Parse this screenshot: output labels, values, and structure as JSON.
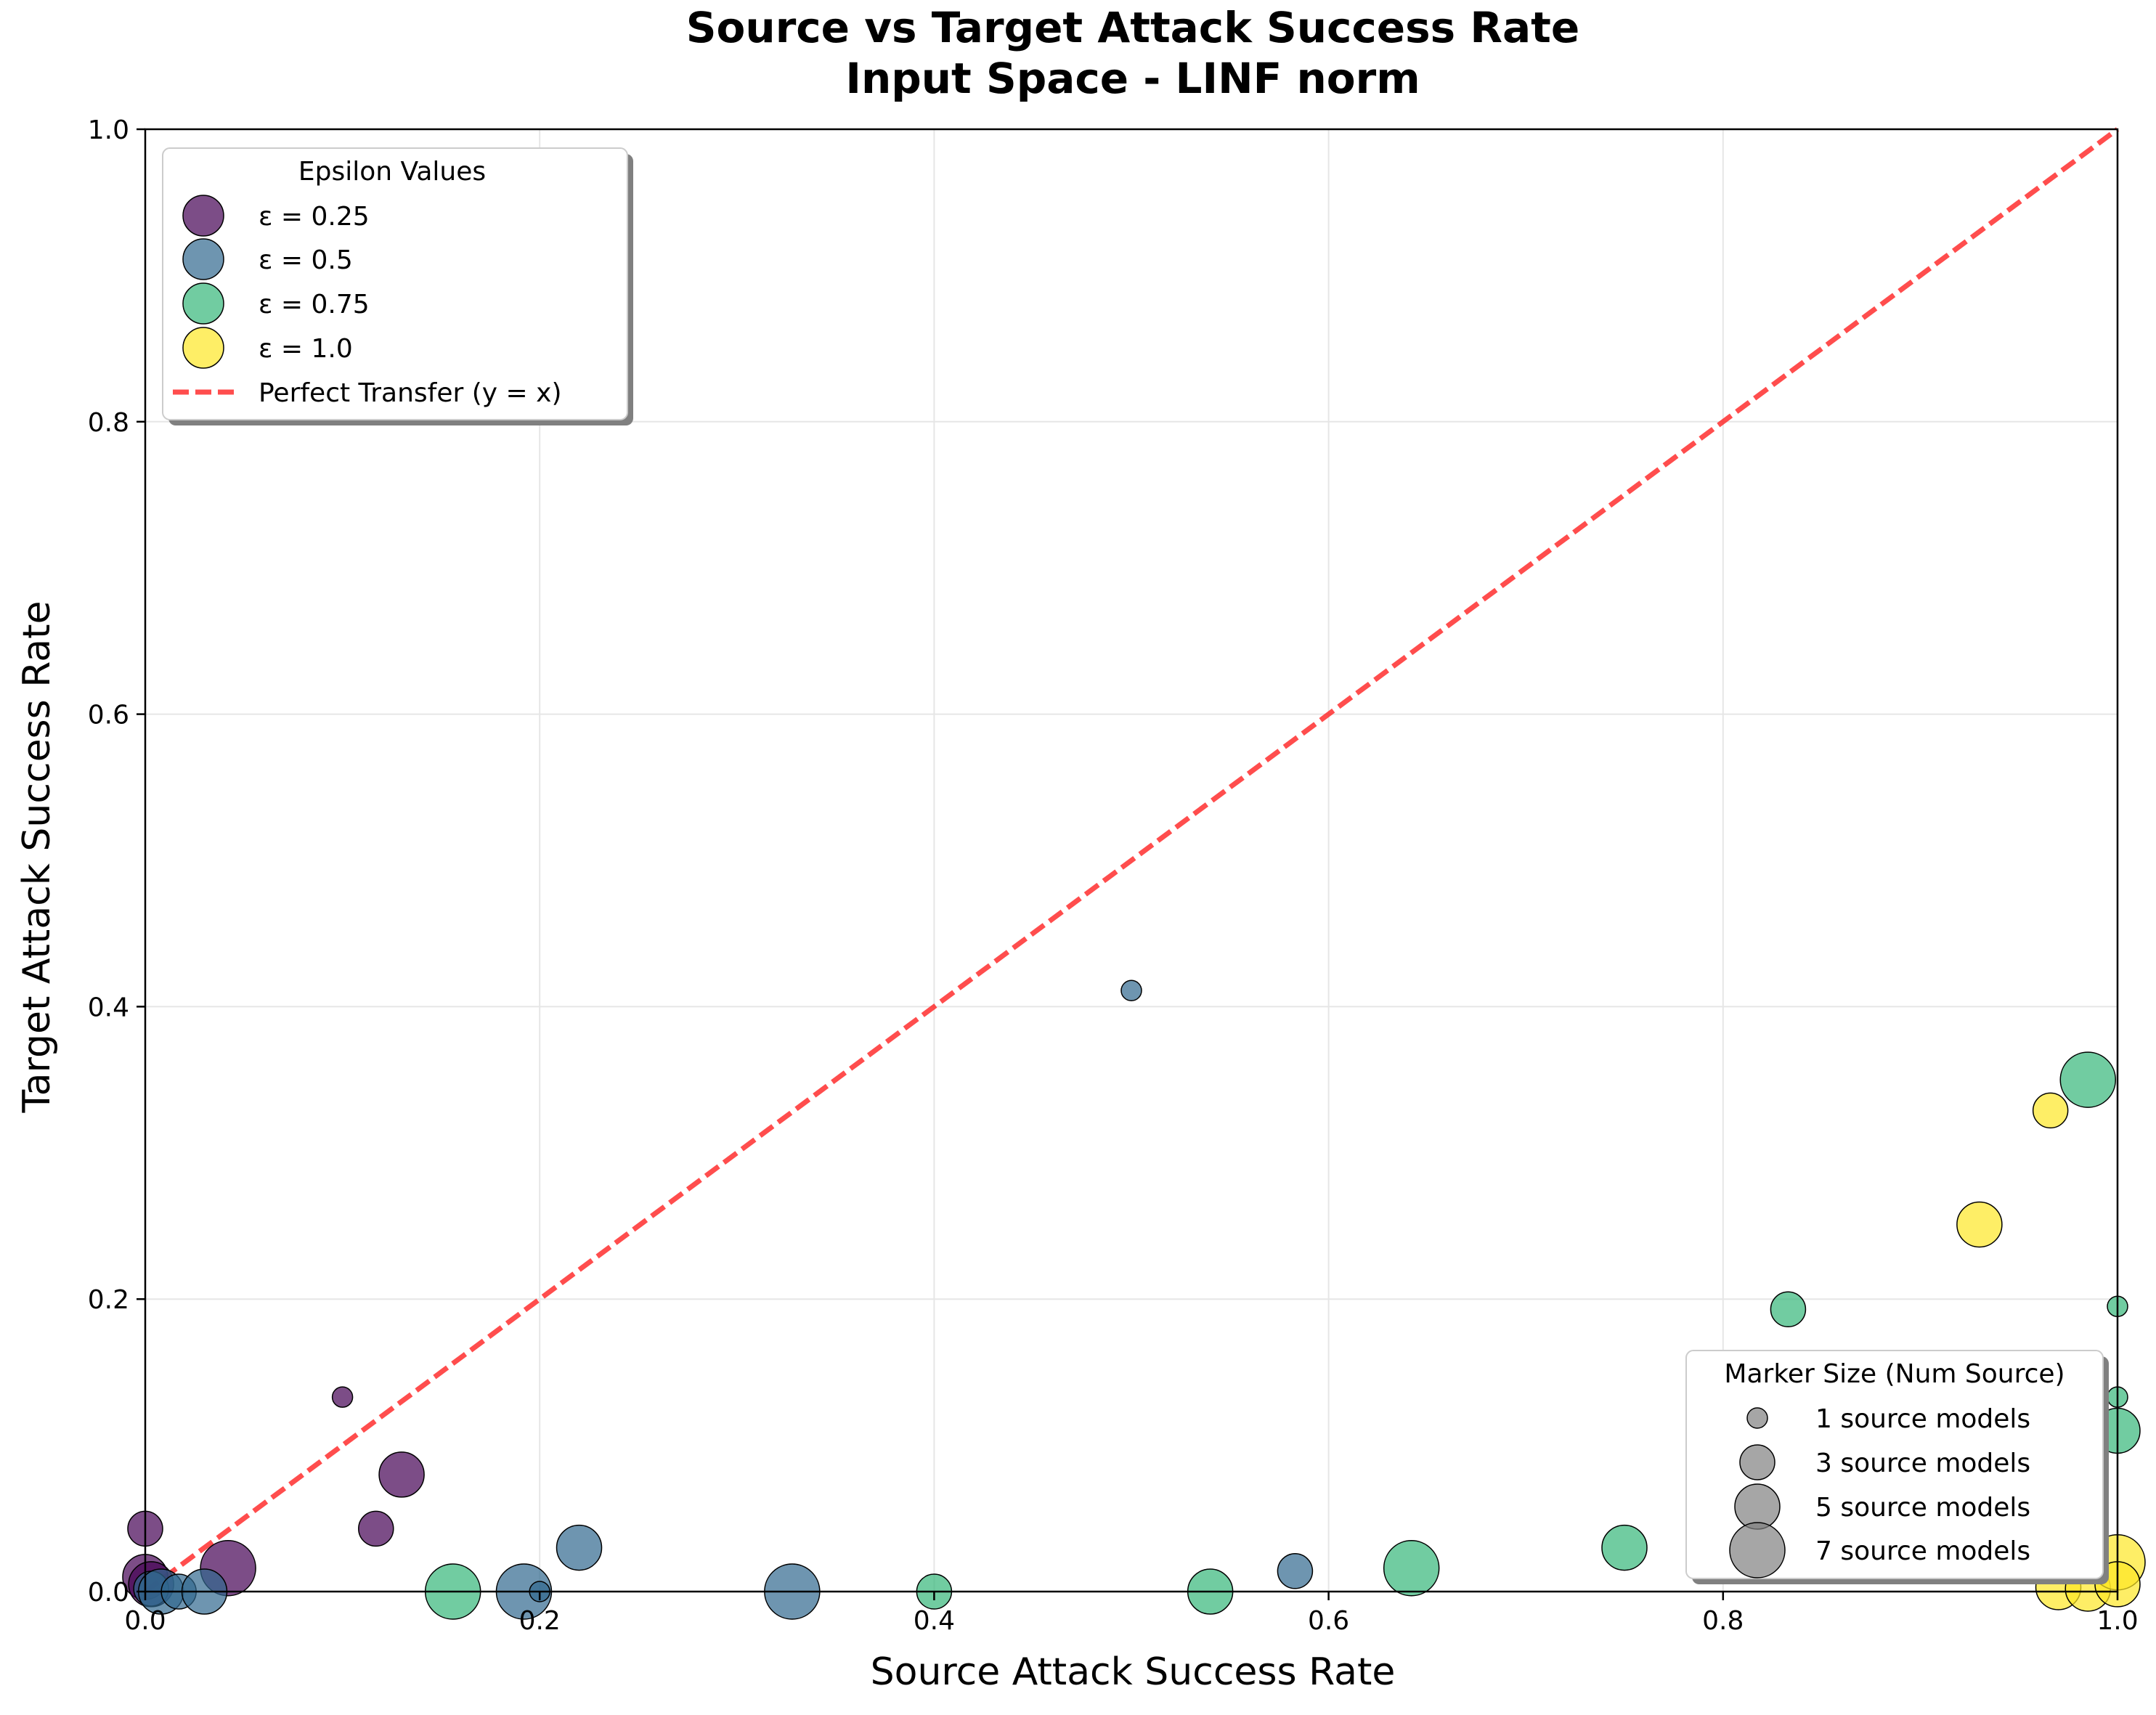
{
  "chart_data": {
    "type": "scatter",
    "title": "Source vs Target Attack Success Rate",
    "subtitle": "Input Space - LINF norm",
    "xlabel": "Source Attack Success Rate",
    "ylabel": "Target Attack Success Rate",
    "xlim": [
      0.0,
      1.0
    ],
    "ylim": [
      0.0,
      1.0
    ],
    "xticks": [
      0.0,
      0.2,
      0.4,
      0.6,
      0.8,
      1.0
    ],
    "yticks": [
      0.0,
      0.2,
      0.4,
      0.6,
      0.8,
      1.0
    ],
    "xtick_labels": [
      "0.0",
      "0.2",
      "0.4",
      "0.6",
      "0.8",
      "1.0"
    ],
    "ytick_labels": [
      "0.0",
      "0.2",
      "0.4",
      "0.6",
      "0.8",
      "1.0"
    ],
    "grid": true,
    "reference_line": {
      "label": "Perfect Transfer (y = x)",
      "color": "#ff2020",
      "style": "dashed",
      "points": [
        [
          0,
          0
        ],
        [
          1,
          1
        ]
      ]
    },
    "legend_epsilon": {
      "title": "Epsilon Values",
      "placement": "upper-left",
      "entries": [
        "ε = 0.25",
        "ε = 0.5",
        "ε = 0.75",
        "ε = 1.0"
      ]
    },
    "legend_size": {
      "title": "Marker Size (Num Source)",
      "placement": "lower-right",
      "entries": [
        {
          "label": "1 source models",
          "num_source": 1
        },
        {
          "label": "3 source models",
          "num_source": 3
        },
        {
          "label": "5 source models",
          "num_source": 5
        },
        {
          "label": "7 source models",
          "num_source": 7
        }
      ]
    },
    "series": [
      {
        "name": "ε = 0.25",
        "color": "#440154",
        "points": [
          {
            "x": 0.0,
            "y": 0.043,
            "num_source": 3
          },
          {
            "x": 0.0,
            "y": 0.01,
            "num_source": 5
          },
          {
            "x": 0.003,
            "y": 0.005,
            "num_source": 5
          },
          {
            "x": 0.042,
            "y": 0.016,
            "num_source": 7
          },
          {
            "x": 0.1,
            "y": 0.133,
            "num_source": 1
          },
          {
            "x": 0.117,
            "y": 0.043,
            "num_source": 3
          },
          {
            "x": 0.13,
            "y": 0.08,
            "num_source": 5
          }
        ]
      },
      {
        "name": "ε = 0.5",
        "color": "#31688e",
        "points": [
          {
            "x": 0.003,
            "y": 0.002,
            "num_source": 3
          },
          {
            "x": 0.008,
            "y": 0.0,
            "num_source": 5
          },
          {
            "x": 0.017,
            "y": 0.0,
            "num_source": 3
          },
          {
            "x": 0.03,
            "y": 0.0,
            "num_source": 5
          },
          {
            "x": 0.192,
            "y": 0.0,
            "num_source": 7
          },
          {
            "x": 0.2,
            "y": 0.0,
            "num_source": 1
          },
          {
            "x": 0.22,
            "y": 0.03,
            "num_source": 5
          },
          {
            "x": 0.328,
            "y": 0.0,
            "num_source": 7
          },
          {
            "x": 0.5,
            "y": 0.411,
            "num_source": 1
          },
          {
            "x": 0.583,
            "y": 0.014,
            "num_source": 3
          }
        ]
      },
      {
        "name": "ε = 0.75",
        "color": "#35b779",
        "points": [
          {
            "x": 0.156,
            "y": 0.0,
            "num_source": 7
          },
          {
            "x": 0.4,
            "y": 0.0,
            "num_source": 3
          },
          {
            "x": 0.54,
            "y": 0.0,
            "num_source": 5
          },
          {
            "x": 0.642,
            "y": 0.016,
            "num_source": 7
          },
          {
            "x": 0.75,
            "y": 0.03,
            "num_source": 5
          },
          {
            "x": 0.833,
            "y": 0.193,
            "num_source": 3
          },
          {
            "x": 0.985,
            "y": 0.35,
            "num_source": 7
          },
          {
            "x": 1.0,
            "y": 0.195,
            "num_source": 1
          },
          {
            "x": 1.0,
            "y": 0.133,
            "num_source": 1
          },
          {
            "x": 1.0,
            "y": 0.11,
            "num_source": 5
          }
        ]
      },
      {
        "name": "ε = 1.0",
        "color": "#fde725",
        "points": [
          {
            "x": 0.93,
            "y": 0.251,
            "num_source": 5
          },
          {
            "x": 0.966,
            "y": 0.329,
            "num_source": 3
          },
          {
            "x": 0.97,
            "y": 0.003,
            "num_source": 5
          },
          {
            "x": 0.985,
            "y": 0.002,
            "num_source": 5
          },
          {
            "x": 1.0,
            "y": 0.02,
            "num_source": 7
          },
          {
            "x": 1.0,
            "y": 0.005,
            "num_source": 5
          }
        ]
      }
    ]
  }
}
